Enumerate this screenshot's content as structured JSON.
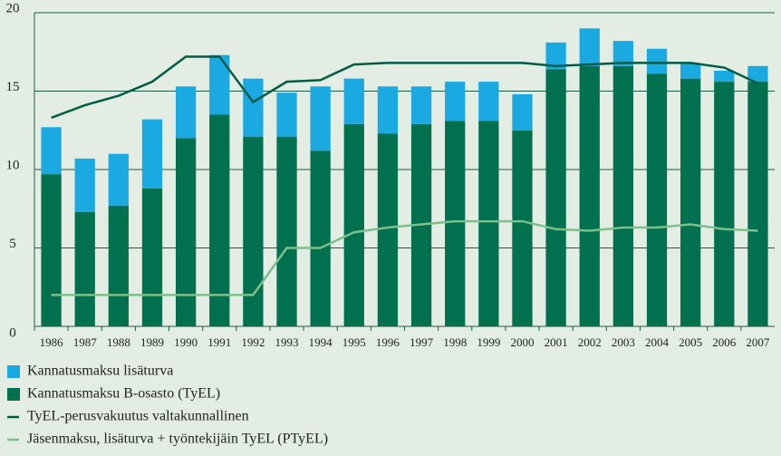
{
  "chart_data": {
    "type": "bar",
    "stacked": true,
    "categories": [
      "1986",
      "1987",
      "1988",
      "1989",
      "1990",
      "1991",
      "1992",
      "1993",
      "1994",
      "1995",
      "1996",
      "1997",
      "1998",
      "1999",
      "2000",
      "2001",
      "2002",
      "2003",
      "2004",
      "2005",
      "2006",
      "2007"
    ],
    "series": [
      {
        "name": "Kannatusmaksu B-osasto (TyEL)",
        "type": "bar",
        "color": "#00704f",
        "values": [
          9.7,
          7.3,
          7.7,
          8.8,
          12.0,
          13.5,
          12.1,
          12.1,
          11.2,
          12.9,
          12.3,
          12.9,
          13.1,
          13.1,
          12.5,
          16.4,
          16.6,
          16.6,
          16.1,
          15.8,
          15.6,
          15.6
        ]
      },
      {
        "name": "Kannatusmaksu lisäturva",
        "type": "bar",
        "color": "#1ba9e1",
        "values": [
          3.0,
          3.4,
          3.3,
          4.4,
          3.3,
          3.8,
          3.7,
          2.8,
          4.1,
          2.9,
          3.0,
          2.4,
          2.5,
          2.5,
          2.3,
          1.7,
          2.4,
          1.6,
          1.6,
          1.0,
          0.7,
          1.0
        ]
      },
      {
        "name": "TyEL-perusvakuutus valtakunnallinen",
        "type": "line",
        "color": "#005c45",
        "values": [
          13.3,
          14.1,
          14.7,
          15.6,
          17.2,
          17.2,
          14.3,
          15.6,
          15.7,
          16.7,
          16.8,
          16.8,
          16.8,
          16.8,
          16.8,
          16.6,
          16.7,
          16.8,
          16.8,
          16.8,
          16.5,
          15.5
        ]
      },
      {
        "name": "Jäsenmaksu, lisäturva + työntekijäin TyEL (PTyEL)",
        "type": "line",
        "color": "#7dbf8a",
        "values": [
          2.0,
          2.0,
          2.0,
          2.0,
          2.0,
          2.0,
          2.0,
          5.0,
          5.0,
          6.0,
          6.3,
          6.5,
          6.7,
          6.7,
          6.7,
          6.2,
          6.1,
          6.3,
          6.3,
          6.5,
          6.2,
          6.1
        ]
      }
    ],
    "legend_order": [
      1,
      0,
      2,
      3
    ],
    "ylim": [
      0,
      20
    ],
    "yticks": [
      0,
      5,
      10,
      15,
      20
    ],
    "grid": true
  }
}
